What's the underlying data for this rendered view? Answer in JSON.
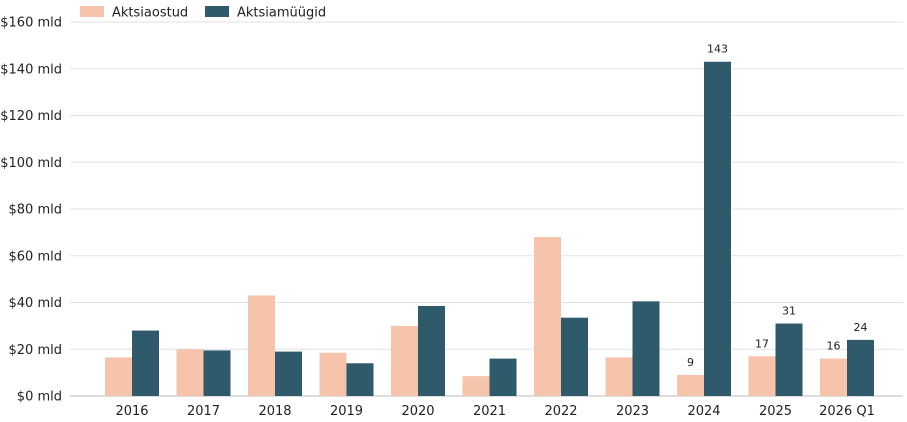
{
  "chart_data": {
    "type": "bar",
    "categories": [
      "2016",
      "2017",
      "2018",
      "2019",
      "2020",
      "2021",
      "2022",
      "2023",
      "2024",
      "2025",
      "2026 Q1"
    ],
    "series": [
      {
        "name": "Aktsiaostud",
        "color": "#f5c4aa",
        "values": [
          16.5,
          20,
          43,
          18.5,
          30,
          8.5,
          68,
          16.5,
          9,
          17,
          16
        ],
        "labels": [
          "",
          "",
          "",
          "",
          "",
          "",
          "",
          "",
          "9",
          "17",
          "16"
        ]
      },
      {
        "name": "Aktsiamüügid",
        "color": "#2e5a6c",
        "values": [
          28,
          19.5,
          19,
          14,
          38.5,
          16,
          33.5,
          40.5,
          143,
          31,
          24
        ],
        "labels": [
          "",
          "",
          "",
          "",
          "",
          "",
          "",
          "",
          "143",
          "31",
          "24"
        ]
      }
    ],
    "yticks": [
      {
        "value": 0,
        "label": "$0 mld"
      },
      {
        "value": 20,
        "label": "$20 mld"
      },
      {
        "value": 40,
        "label": "$40 mld"
      },
      {
        "value": 60,
        "label": "$60 mld"
      },
      {
        "value": 80,
        "label": "$80 mld"
      },
      {
        "value": 100,
        "label": "$100 mld"
      },
      {
        "value": 120,
        "label": "$120 mld"
      },
      {
        "value": 140,
        "label": "$140 mld"
      },
      {
        "value": 160,
        "label": "$160 mld"
      }
    ],
    "ylim": [
      0,
      160
    ],
    "grid": true,
    "legend_position": "top-left",
    "title": "",
    "xlabel": "",
    "ylabel": ""
  }
}
